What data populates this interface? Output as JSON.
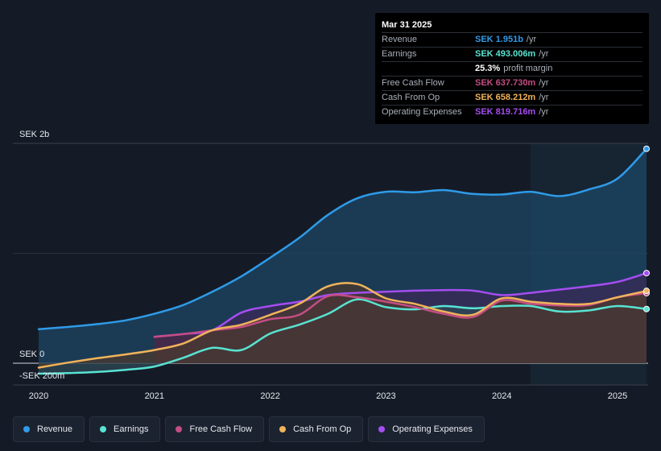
{
  "chart_data": {
    "type": "area",
    "currency": "SEK",
    "y_labels": {
      "top": "SEK 2b",
      "zero": "SEK 0",
      "bottom": "-SEK 200m"
    },
    "ylim": [
      -200,
      2000
    ],
    "xlim": [
      2020.0,
      2025.25
    ],
    "forecast_start": 2024.25,
    "x_ticks": [
      "2020",
      "2021",
      "2022",
      "2023",
      "2024",
      "2025"
    ],
    "series": [
      {
        "name": "Revenue",
        "color": "#2f9be8",
        "fill": "#1d4766",
        "points": [
          [
            2020.0,
            310
          ],
          [
            2020.25,
            330
          ],
          [
            2020.5,
            355
          ],
          [
            2020.75,
            390
          ],
          [
            2021.0,
            450
          ],
          [
            2021.25,
            530
          ],
          [
            2021.5,
            650
          ],
          [
            2021.75,
            790
          ],
          [
            2022.0,
            960
          ],
          [
            2022.25,
            1140
          ],
          [
            2022.5,
            1350
          ],
          [
            2022.75,
            1500
          ],
          [
            2023.0,
            1560
          ],
          [
            2023.25,
            1555
          ],
          [
            2023.5,
            1575
          ],
          [
            2023.75,
            1540
          ],
          [
            2024.0,
            1535
          ],
          [
            2024.25,
            1560
          ],
          [
            2024.5,
            1520
          ],
          [
            2024.75,
            1580
          ],
          [
            2025.0,
            1680
          ],
          [
            2025.25,
            1951
          ]
        ]
      },
      {
        "name": "Operating Expenses",
        "color": "#a54df0",
        "fill": "#3a2a58",
        "points": [
          [
            2021.0,
            240
          ],
          [
            2021.25,
            265
          ],
          [
            2021.5,
            300
          ],
          [
            2021.75,
            460
          ],
          [
            2022.0,
            520
          ],
          [
            2022.25,
            560
          ],
          [
            2022.5,
            620
          ],
          [
            2022.75,
            640
          ],
          [
            2023.0,
            650
          ],
          [
            2023.25,
            660
          ],
          [
            2023.5,
            665
          ],
          [
            2023.75,
            660
          ],
          [
            2024.0,
            620
          ],
          [
            2024.25,
            640
          ],
          [
            2024.5,
            670
          ],
          [
            2024.75,
            700
          ],
          [
            2025.0,
            740
          ],
          [
            2025.25,
            819.716
          ]
        ]
      },
      {
        "name": "Earnings",
        "color": "#58e3d2",
        "fill": "#2d4a55",
        "points": [
          [
            2020.0,
            -95
          ],
          [
            2020.25,
            -90
          ],
          [
            2020.5,
            -80
          ],
          [
            2020.75,
            -60
          ],
          [
            2021.0,
            -30
          ],
          [
            2021.25,
            50
          ],
          [
            2021.5,
            140
          ],
          [
            2021.75,
            120
          ],
          [
            2022.0,
            270
          ],
          [
            2022.25,
            350
          ],
          [
            2022.5,
            450
          ],
          [
            2022.75,
            580
          ],
          [
            2023.0,
            510
          ],
          [
            2023.25,
            490
          ],
          [
            2023.5,
            520
          ],
          [
            2023.75,
            500
          ],
          [
            2024.0,
            520
          ],
          [
            2024.25,
            520
          ],
          [
            2024.5,
            470
          ],
          [
            2024.75,
            480
          ],
          [
            2025.0,
            520
          ],
          [
            2025.25,
            493.006
          ]
        ]
      },
      {
        "name": "Free Cash Flow",
        "color": "#c44d84",
        "fill": "#4a2a45",
        "points": [
          [
            2021.0,
            240
          ],
          [
            2021.25,
            265
          ],
          [
            2021.5,
            300
          ],
          [
            2021.75,
            330
          ],
          [
            2022.0,
            400
          ],
          [
            2022.25,
            440
          ],
          [
            2022.5,
            610
          ],
          [
            2022.75,
            600
          ],
          [
            2023.0,
            560
          ],
          [
            2023.25,
            510
          ],
          [
            2023.5,
            450
          ],
          [
            2023.75,
            420
          ],
          [
            2024.0,
            570
          ],
          [
            2024.25,
            540
          ],
          [
            2024.5,
            525
          ],
          [
            2024.75,
            530
          ],
          [
            2025.0,
            600
          ],
          [
            2025.25,
            637.73
          ]
        ]
      },
      {
        "name": "Cash From Op",
        "color": "#f0b35a",
        "fill": "#4a3a30",
        "points": [
          [
            2020.0,
            -40
          ],
          [
            2020.25,
            5
          ],
          [
            2020.5,
            45
          ],
          [
            2020.75,
            80
          ],
          [
            2021.0,
            120
          ],
          [
            2021.25,
            180
          ],
          [
            2021.5,
            300
          ],
          [
            2021.75,
            350
          ],
          [
            2022.0,
            440
          ],
          [
            2022.25,
            540
          ],
          [
            2022.5,
            700
          ],
          [
            2022.75,
            720
          ],
          [
            2023.0,
            590
          ],
          [
            2023.25,
            540
          ],
          [
            2023.5,
            470
          ],
          [
            2023.75,
            440
          ],
          [
            2024.0,
            590
          ],
          [
            2024.25,
            560
          ],
          [
            2024.5,
            540
          ],
          [
            2024.75,
            540
          ],
          [
            2025.0,
            600
          ],
          [
            2025.25,
            658.212
          ]
        ]
      }
    ],
    "tooltip": {
      "date": "Mar 31 2025",
      "rows": [
        {
          "label": "Revenue",
          "value": "SEK 1.951b",
          "unit": "/yr",
          "color": "#2f9be8"
        },
        {
          "label": "Earnings",
          "value": "SEK 493.006m",
          "unit": "/yr",
          "color": "#58e3d2"
        },
        {
          "label": "",
          "value": "25.3%",
          "unit": "profit margin",
          "color": "#ffffff"
        },
        {
          "label": "Free Cash Flow",
          "value": "SEK 637.730m",
          "unit": "/yr",
          "color": "#c44d84"
        },
        {
          "label": "Cash From Op",
          "value": "SEK 658.212m",
          "unit": "/yr",
          "color": "#f0b35a"
        },
        {
          "label": "Operating Expenses",
          "value": "SEK 819.716m",
          "unit": "/yr",
          "color": "#a54df0"
        }
      ]
    },
    "legend": [
      {
        "label": "Revenue",
        "color": "#2f9be8"
      },
      {
        "label": "Earnings",
        "color": "#58e3d2"
      },
      {
        "label": "Free Cash Flow",
        "color": "#c44d84"
      },
      {
        "label": "Cash From Op",
        "color": "#f0b35a"
      },
      {
        "label": "Operating Expenses",
        "color": "#a54df0"
      }
    ]
  }
}
